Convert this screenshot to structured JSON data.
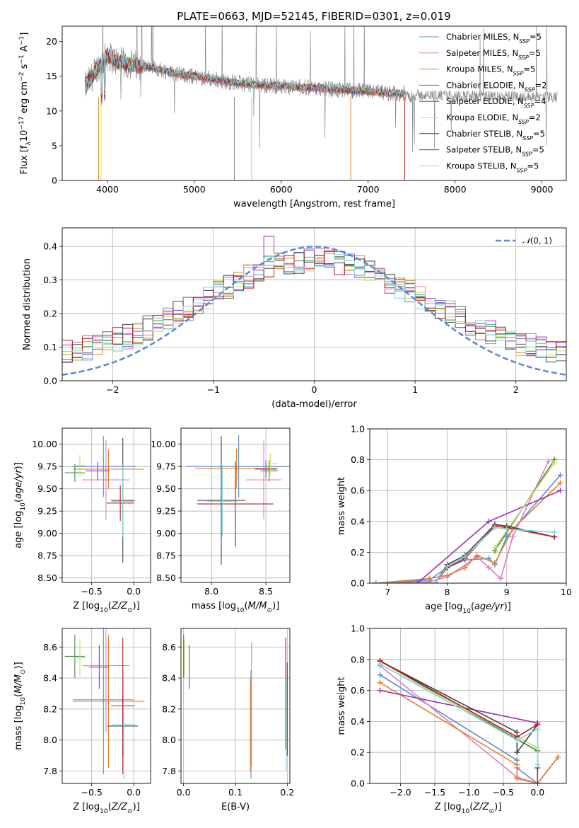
{
  "figure": {
    "title": "PLATE=0663, MJD=52145, FIBERID=0301, z=0.019"
  },
  "colors": {
    "Chabrier MILES": "#5b8bd6",
    "Salpeter MILES": "#e07bbf",
    "Kroupa MILES": "#e6812b",
    "Chabrier ELODIE": "#3f8e3f",
    "Salpeter ELODIE": "#9a2fb8",
    "Kroupa ELODIE": "#c9e060",
    "Chabrier STELIB": "#444444",
    "Salpeter STELIB": "#c0171e",
    "Kroupa STELIB": "#7fd8e0",
    "data": "#808080",
    "gaussian": "#5b8bd6"
  },
  "chart_data": [
    {
      "id": "spectrum",
      "type": "line",
      "title": "PLATE=0663, MJD=52145, FIBERID=0301, z=0.019",
      "xlabel": "wavelength [Angstrom, rest frame]",
      "ylabel": "Flux [f_λ 10^-17 erg cm^-2 s^-1 A^-1]",
      "xlim": [
        3480,
        9280
      ],
      "ylim": [
        0,
        22.2
      ],
      "xticks": [
        4000,
        5000,
        6000,
        7000,
        8000,
        9000
      ],
      "yticks": [
        0,
        5,
        10,
        15,
        20
      ],
      "legend_position": "top-right",
      "series": [
        {
          "name": "Chabrier MILES, N_SSP=5"
        },
        {
          "name": "Salpeter MILES, N_SSP=5"
        },
        {
          "name": "Kroupa MILES, N_SSP=5"
        },
        {
          "name": "Chabrier ELODIE, N_SSP=2"
        },
        {
          "name": "Salpeter ELODIE, N_SSP=4"
        },
        {
          "name": "Kroupa ELODIE, N_SSP=2"
        },
        {
          "name": "Chabrier STELIB, N_SSP=5"
        },
        {
          "name": "Salpeter STELIB, N_SSP=5"
        },
        {
          "name": "Kroupa STELIB, N_SSP=5"
        }
      ],
      "continuum": {
        "x": [
          3750,
          3900,
          4000,
          4100,
          4200,
          4400,
          4600,
          4800,
          5000,
          5200,
          5500,
          5800,
          6100,
          6400,
          6700,
          7000,
          7200,
          7420
        ],
        "y": [
          13.5,
          16.5,
          18.0,
          17.2,
          16.8,
          16.5,
          16.0,
          15.3,
          15.0,
          14.6,
          14.0,
          13.7,
          13.5,
          13.3,
          13.0,
          12.8,
          12.6,
          12.5
        ]
      }
    },
    {
      "id": "residuals",
      "type": "histogram",
      "xlabel": "(data-model)/error",
      "ylabel": "Normed distribution",
      "xlim": [
        -2.5,
        2.5
      ],
      "ylim": [
        0,
        0.455
      ],
      "xticks": [
        -2,
        -1,
        0,
        1,
        2
      ],
      "yticks": [
        0.0,
        0.1,
        0.2,
        0.3,
        0.4
      ],
      "legend": "N(0,1)",
      "legend_position": "top-right",
      "bin_width": 0.1
    },
    {
      "id": "age-vs-Z",
      "type": "errorbar",
      "xlabel": "Z [log10(Z/Z⊙)]",
      "ylabel": "age [log10(age/yr)]",
      "xlim": [
        -0.85,
        0.2
      ],
      "ylim": [
        8.45,
        10.18
      ],
      "xticks": [
        -0.5,
        0.0
      ],
      "yticks": [
        8.5,
        8.75,
        9.0,
        9.25,
        9.5,
        9.75,
        10.0
      ],
      "points": [
        {
          "series": "Chabrier MILES",
          "x": -0.36,
          "xerr": 0.38,
          "y": 9.75,
          "yerr": 0.34
        },
        {
          "series": "Salpeter MILES",
          "x": -0.33,
          "xerr": 0.28,
          "y": 9.6,
          "yerr": 0.45
        },
        {
          "series": "Kroupa MILES",
          "x": -0.3,
          "xerr": 0.42,
          "y": 9.72,
          "yerr": 0.22
        },
        {
          "series": "Chabrier ELODIE",
          "x": -0.7,
          "xerr": 0.12,
          "y": 9.68,
          "yerr": 0.1
        },
        {
          "series": "Salpeter ELODIE",
          "x": -0.43,
          "xerr": 0.14,
          "y": 9.7,
          "yerr": 0.1
        },
        {
          "series": "Kroupa ELODIE",
          "x": -0.64,
          "xerr": 0.07,
          "y": 9.76,
          "yerr": 0.12
        },
        {
          "series": "Chabrier STELIB",
          "x": -0.13,
          "xerr": 0.14,
          "y": 9.37,
          "yerr": 0.7
        },
        {
          "series": "Salpeter STELIB",
          "x": -0.16,
          "xerr": 0.16,
          "y": 9.34,
          "yerr": 0.2
        },
        {
          "series": "Kroupa STELIB",
          "x": -0.13,
          "xerr": 0.13,
          "y": 9.36,
          "yerr": 0.4
        }
      ]
    },
    {
      "id": "age-vs-mass",
      "type": "errorbar",
      "xlabel": "mass [log10(M/M⊙)]",
      "ylabel": "",
      "xlim": [
        7.72,
        8.72
      ],
      "ylim": [
        8.45,
        10.18
      ],
      "xticks": [
        8.0,
        8.5
      ],
      "yticks": [
        8.5,
        8.75,
        9.0,
        9.25,
        9.5,
        9.75,
        10.0
      ],
      "points": [
        {
          "series": "Chabrier MILES",
          "x": 8.25,
          "xerr": 0.48,
          "y": 9.75,
          "yerr": 0.35
        },
        {
          "series": "Salpeter MILES",
          "x": 8.48,
          "xerr": 0.16,
          "y": 9.6,
          "yerr": 0.44
        },
        {
          "series": "Kroupa MILES",
          "x": 8.23,
          "xerr": 0.38,
          "y": 9.73,
          "yerr": 0.22
        },
        {
          "series": "Chabrier ELODIE",
          "x": 8.53,
          "xerr": 0.08,
          "y": 9.7,
          "yerr": 0.12
        },
        {
          "series": "Salpeter ELODIE",
          "x": 8.5,
          "xerr": 0.1,
          "y": 9.72,
          "yerr": 0.1
        },
        {
          "series": "Kroupa ELODIE",
          "x": 8.54,
          "xerr": 0.07,
          "y": 9.78,
          "yerr": 0.12
        },
        {
          "series": "Chabrier STELIB",
          "x": 8.09,
          "xerr": 0.22,
          "y": 9.37,
          "yerr": 0.72
        },
        {
          "series": "Salpeter STELIB",
          "x": 8.22,
          "xerr": 0.35,
          "y": 9.33,
          "yerr": 0.48
        },
        {
          "series": "Kroupa STELIB",
          "x": 8.1,
          "xerr": 0.14,
          "y": 9.36,
          "yerr": 0.4
        }
      ]
    },
    {
      "id": "weight-vs-age",
      "type": "line",
      "xlabel": "age [log10(age/yr)]",
      "ylabel": "mass weight",
      "xlim": [
        6.7,
        10.0
      ],
      "ylim": [
        0.0,
        1.0
      ],
      "xticks": [
        7,
        8,
        9,
        10
      ],
      "yticks": [
        0.0,
        0.2,
        0.4,
        0.6,
        0.8,
        1.0
      ],
      "series": [
        {
          "series": "Chabrier MILES",
          "x": [
            6.8,
            7.7,
            8.0,
            8.3,
            8.7,
            8.8,
            9.0,
            9.9
          ],
          "y": [
            0.0,
            0.02,
            0.1,
            0.15,
            0.16,
            0.12,
            0.3,
            0.7
          ]
        },
        {
          "series": "Salpeter MILES",
          "x": [
            6.8,
            7.7,
            8.0,
            8.5,
            8.7,
            8.9,
            9.1,
            9.7
          ],
          "y": [
            0.0,
            0.01,
            0.04,
            0.17,
            0.1,
            0.03,
            0.3,
            0.79
          ]
        },
        {
          "series": "Kroupa MILES",
          "x": [
            6.8,
            7.7,
            8.0,
            8.3,
            8.5,
            8.8,
            9.1,
            9.9
          ],
          "y": [
            0.0,
            0.03,
            0.05,
            0.1,
            0.18,
            0.13,
            0.35,
            0.65
          ]
        },
        {
          "series": "Chabrier ELODIE",
          "x": [
            8.8,
            9.8
          ],
          "y": [
            0.21,
            0.8
          ]
        },
        {
          "series": "Salpeter ELODIE",
          "x": [
            6.8,
            7.5,
            8.7,
            9.9
          ],
          "y": [
            0.0,
            0.0,
            0.4,
            0.6
          ]
        },
        {
          "series": "Kroupa ELODIE",
          "x": [
            8.8,
            9.8
          ],
          "y": [
            0.23,
            0.78
          ]
        },
        {
          "series": "Chabrier STELIB",
          "x": [
            6.8,
            7.8,
            8.0,
            8.3,
            8.8,
            9.0,
            9.8
          ],
          "y": [
            0.0,
            0.0,
            0.12,
            0.18,
            0.38,
            0.37,
            0.3
          ]
        },
        {
          "series": "Salpeter STELIB",
          "x": [
            6.8,
            7.8,
            8.0,
            8.3,
            8.8,
            9.0,
            9.8
          ],
          "y": [
            0.0,
            0.0,
            0.1,
            0.16,
            0.37,
            0.36,
            0.3
          ]
        },
        {
          "series": "Kroupa STELIB",
          "x": [
            6.8,
            7.8,
            8.0,
            8.3,
            8.8,
            9.0,
            9.8
          ],
          "y": [
            0.0,
            0.0,
            0.11,
            0.17,
            0.36,
            0.35,
            0.33
          ]
        }
      ]
    },
    {
      "id": "mass-vs-Z",
      "type": "errorbar",
      "xlabel": "Z [log10(Z/Z⊙)]",
      "ylabel": "mass [log10(M/M⊙)]",
      "xlim": [
        -0.85,
        0.2
      ],
      "ylim": [
        7.72,
        8.72
      ],
      "xticks": [
        -0.5,
        0.0
      ],
      "yticks": [
        7.8,
        8.0,
        8.2,
        8.4,
        8.6
      ],
      "points": [
        {
          "series": "Chabrier MILES",
          "x": -0.36,
          "xerr": 0.36,
          "y": 8.26,
          "yerr": 0.48
        },
        {
          "series": "Salpeter MILES",
          "x": -0.33,
          "xerr": 0.28,
          "y": 8.48,
          "yerr": 0.43
        },
        {
          "series": "Kroupa MILES",
          "x": -0.3,
          "xerr": 0.43,
          "y": 8.25,
          "yerr": 0.43
        },
        {
          "series": "Chabrier ELODIE",
          "x": -0.7,
          "xerr": 0.12,
          "y": 8.54,
          "yerr": 0.14
        },
        {
          "series": "Salpeter ELODIE",
          "x": -0.41,
          "xerr": 0.12,
          "y": 8.47,
          "yerr": 0.14
        },
        {
          "series": "Kroupa ELODIE",
          "x": -0.64,
          "xerr": 0.07,
          "y": 8.53,
          "yerr": 0.12
        },
        {
          "series": "Chabrier STELIB",
          "x": -0.13,
          "xerr": 0.18,
          "y": 8.09,
          "yerr": 0.2
        },
        {
          "series": "Salpeter STELIB",
          "x": -0.13,
          "xerr": 0.14,
          "y": 8.22,
          "yerr": 0.44
        },
        {
          "series": "Kroupa STELIB",
          "x": -0.12,
          "xerr": 0.14,
          "y": 8.1,
          "yerr": 0.35
        }
      ]
    },
    {
      "id": "mass-vs-EBV",
      "type": "errorbar",
      "xlabel": "E(B-V)",
      "ylabel": "",
      "xlim": [
        -0.005,
        0.205
      ],
      "ylim": [
        7.72,
        8.72
      ],
      "xticks": [
        0.0,
        0.1,
        0.2
      ],
      "yticks": [
        7.8,
        8.0,
        8.2,
        8.4,
        8.6
      ],
      "points": [
        {
          "series": "Chabrier MILES",
          "x": 0.13,
          "xerr": 0.0,
          "y": 8.1,
          "yerr": 0.35
        },
        {
          "series": "Salpeter MILES",
          "x": 0.131,
          "xerr": 0.0,
          "y": 8.23,
          "yerr": 0.4
        },
        {
          "series": "Kroupa MILES",
          "x": 0.129,
          "xerr": 0.0,
          "y": 8.1,
          "yerr": 0.3
        },
        {
          "series": "Chabrier ELODIE",
          "x": 0.0,
          "xerr": 0.0,
          "y": 8.54,
          "yerr": 0.14
        },
        {
          "series": "Salpeter ELODIE",
          "x": 0.011,
          "xerr": 0.0,
          "y": 8.47,
          "yerr": 0.14
        },
        {
          "series": "Kroupa ELODIE",
          "x": 0.002,
          "xerr": 0.0,
          "y": 8.53,
          "yerr": 0.12
        },
        {
          "series": "Chabrier STELIB",
          "x": 0.2,
          "xerr": 0.0,
          "y": 8.2,
          "yerr": 0.3
        },
        {
          "series": "Salpeter STELIB",
          "x": 0.197,
          "xerr": 0.0,
          "y": 8.3,
          "yerr": 0.36
        },
        {
          "series": "Kroupa STELIB",
          "x": 0.198,
          "xerr": 0.0,
          "y": 8.1,
          "yerr": 0.3
        }
      ]
    },
    {
      "id": "weight-vs-Z",
      "type": "line",
      "xlabel": "Z [log10(Z/Z⊙)]",
      "ylabel": "mass weight",
      "xlim": [
        -2.45,
        0.42
      ],
      "ylim": [
        0.0,
        1.0
      ],
      "xticks": [
        -2.0,
        -1.5,
        -1.0,
        -0.5,
        0.0
      ],
      "yticks": [
        0.0,
        0.2,
        0.4,
        0.6,
        0.8,
        1.0
      ],
      "series": [
        {
          "series": "Chabrier MILES",
          "x": [
            -2.3,
            -0.3,
            -0.3,
            0.0,
            0.3
          ],
          "y": [
            0.7,
            0.15,
            0.1,
            0.0,
            0.17
          ]
        },
        {
          "series": "Salpeter MILES",
          "x": [
            -2.3,
            -0.3,
            0.0,
            0.3
          ],
          "y": [
            0.76,
            0.04,
            0.0,
            0.17
          ]
        },
        {
          "series": "Kroupa MILES",
          "x": [
            -2.3,
            -0.3,
            -0.3,
            0.0,
            0.3
          ],
          "y": [
            0.65,
            0.12,
            0.03,
            0.0,
            0.17
          ]
        },
        {
          "series": "Chabrier ELODIE",
          "x": [
            -2.3,
            0.0
          ],
          "y": [
            0.79,
            0.21
          ]
        },
        {
          "series": "Salpeter ELODIE",
          "x": [
            -2.3,
            0.0,
            0.0
          ],
          "y": [
            0.6,
            0.39,
            0.0
          ]
        },
        {
          "series": "Kroupa ELODIE",
          "x": [
            -2.3,
            0.0
          ],
          "y": [
            0.77,
            0.23
          ]
        },
        {
          "series": "Chabrier STELIB",
          "x": [
            -2.3,
            -0.3,
            -0.3,
            0.0,
            0.0
          ],
          "y": [
            0.79,
            0.33,
            0.2,
            0.38,
            0.1
          ]
        },
        {
          "series": "Salpeter STELIB",
          "x": [
            -2.3,
            -0.3,
            0.0
          ],
          "y": [
            0.79,
            0.3,
            0.38
          ]
        },
        {
          "series": "Kroupa STELIB",
          "x": [
            -2.3,
            -0.3,
            0.0,
            0.0
          ],
          "y": [
            0.77,
            0.28,
            0.35,
            0.12
          ]
        }
      ]
    }
  ]
}
